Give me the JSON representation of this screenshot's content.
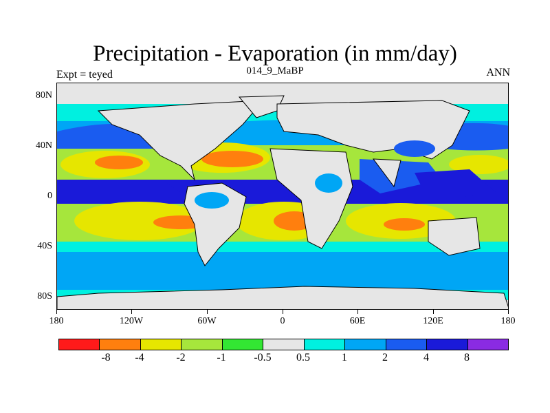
{
  "title": "Precipitation - Evaporation (in mm/day)",
  "subtitle_center": "014_9_MaBP",
  "subtitle_left": "Expt = teyed",
  "subtitle_right": "ANN",
  "y_axis_labels": [
    "80N",
    "40N",
    "0",
    "40S",
    "80S"
  ],
  "x_axis_labels": [
    "180",
    "120W",
    "60W",
    "0",
    "60E",
    "120E",
    "180"
  ],
  "colorbar": {
    "colors": [
      "#ff1a1a",
      "#ff7f0e",
      "#e6e600",
      "#a6e63c",
      "#33e633",
      "#e6e6e6",
      "#00f0e0",
      "#00a6f5",
      "#1a5cf0",
      "#1a1ad9",
      "#8a2be2"
    ],
    "labels": [
      "-8",
      "-4",
      "-2",
      "-1",
      "-0.5",
      "0.5",
      "1",
      "2",
      "4",
      "8"
    ]
  },
  "palette": {
    "strong_wet": "#1a1ad9",
    "wet": "#1a5cf0",
    "moderate_wet": "#00a6f5",
    "light_wet": "#00f0e0",
    "neutral": "#e6e6e6",
    "light_dry": "#33e633",
    "moderate_dry": "#a6e63c",
    "dry": "#e6e600",
    "very_dry": "#ff7f0e"
  }
}
